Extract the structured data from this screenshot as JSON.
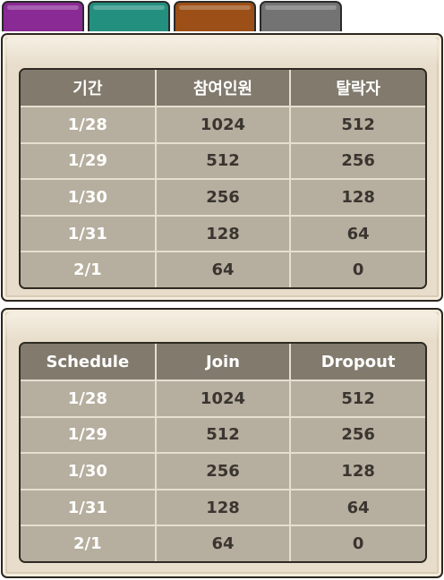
{
  "tabs": [
    {
      "color": "#8a2a94"
    },
    {
      "color": "#238f7f"
    },
    {
      "color": "#9c4f16"
    },
    {
      "color": "#737373"
    }
  ],
  "table_korean": {
    "headers": [
      "기간",
      "참여인원",
      "탈락자"
    ],
    "rows": [
      [
        "1/28",
        "1024",
        "512"
      ],
      [
        "1/29",
        "512",
        "256"
      ],
      [
        "1/30",
        "256",
        "128"
      ],
      [
        "1/31",
        "128",
        "64"
      ],
      [
        "2/1",
        "64",
        "0"
      ]
    ]
  },
  "table_english": {
    "headers": [
      "Schedule",
      "Join",
      "Dropout"
    ],
    "rows": [
      [
        "1/28",
        "1024",
        "512"
      ],
      [
        "1/29",
        "512",
        "256"
      ],
      [
        "1/30",
        "256",
        "128"
      ],
      [
        "1/31",
        "128",
        "64"
      ],
      [
        "2/1",
        "64",
        "0"
      ]
    ]
  }
}
